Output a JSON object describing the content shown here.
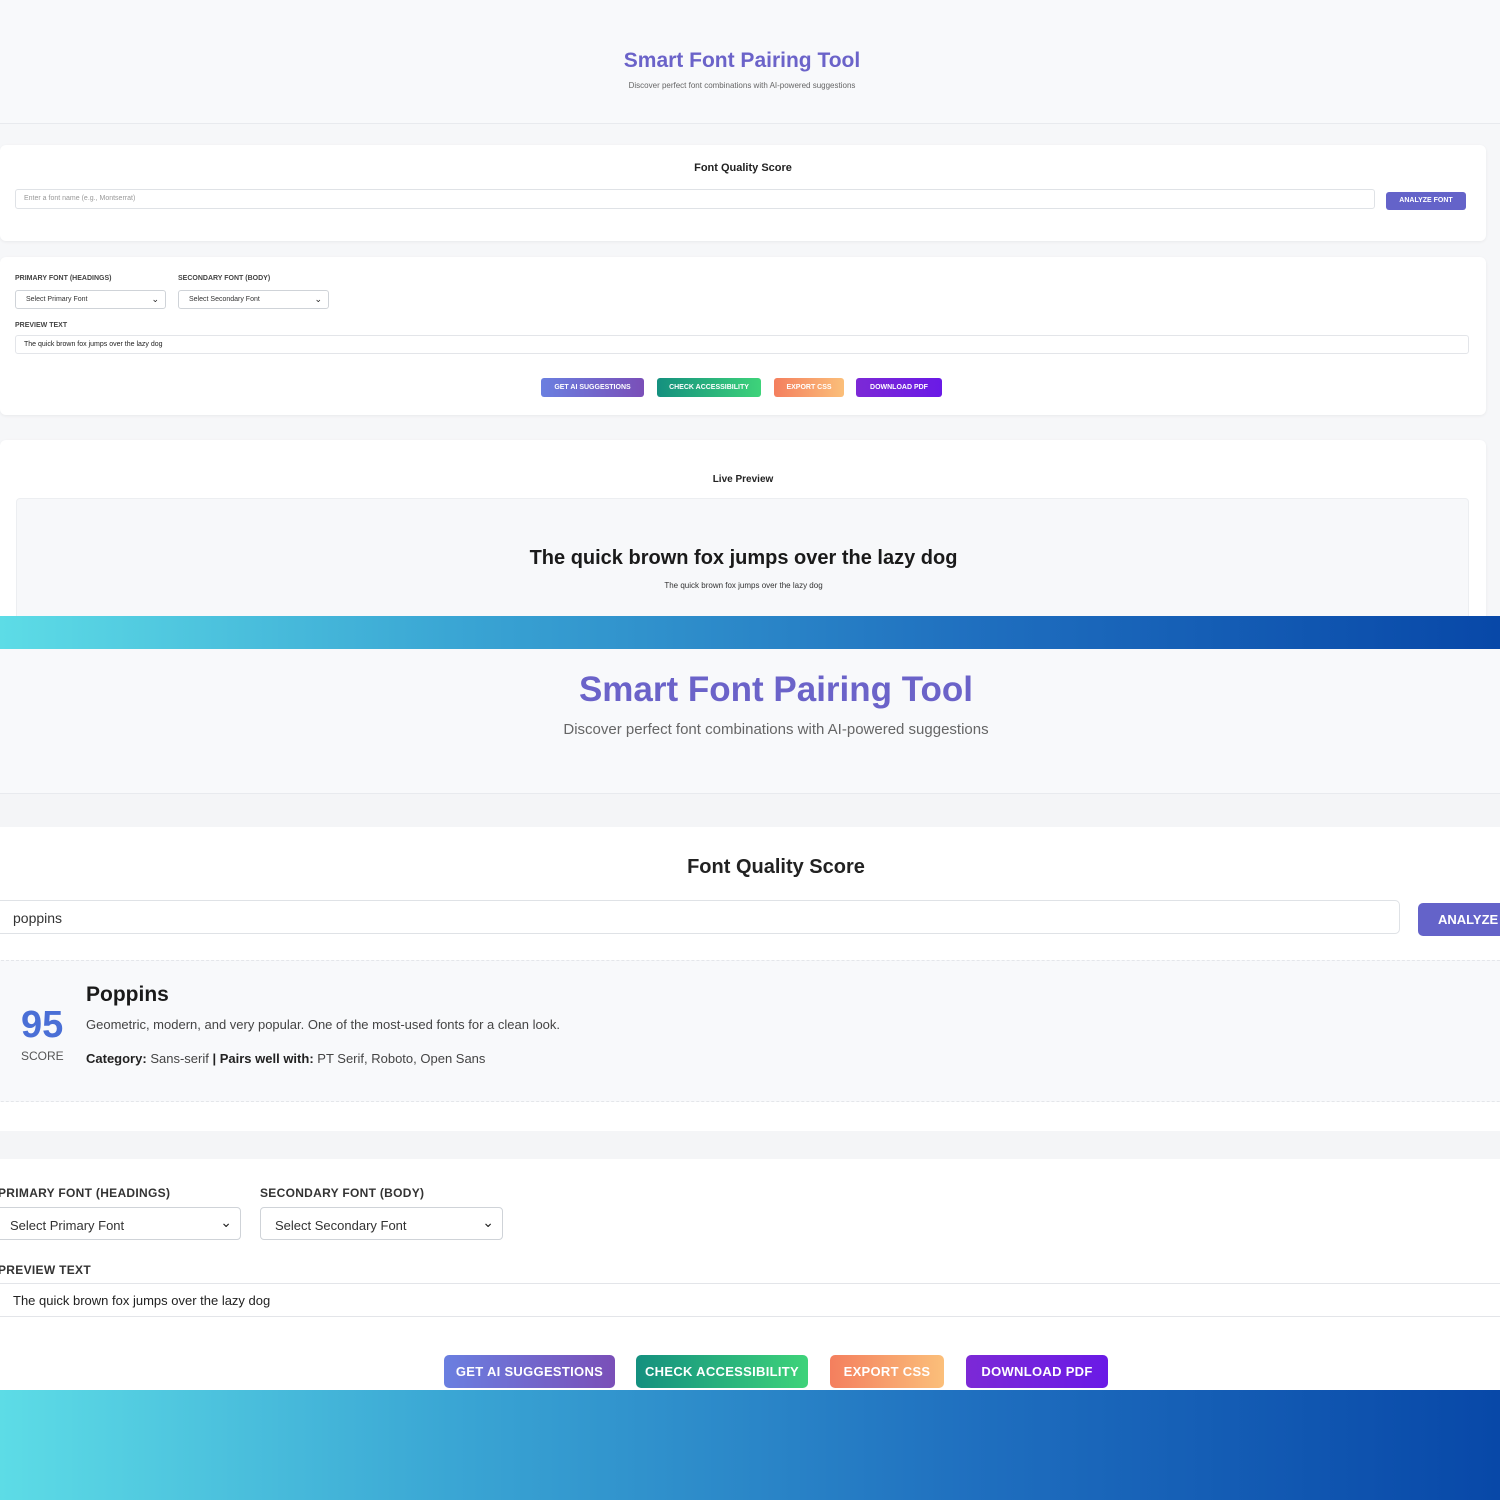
{
  "app": {
    "title": "Smart Font Pairing Tool",
    "subtitle": "Discover perfect font combinations with AI-powered suggestions"
  },
  "quality": {
    "heading": "Font Quality Score",
    "input_placeholder": "Enter a font name (e.g., Montserrat)",
    "input_value": "poppins",
    "analyze_label": "ANALYZE FONT",
    "result": {
      "score": "95",
      "score_label": "SCORE",
      "font_name": "Poppins",
      "description": "Geometric, modern, and very popular. One of the most-used fonts for a clean look.",
      "category_label": "Category:",
      "category": "Sans-serif",
      "separator": "|",
      "pairs_label": "Pairs well with:",
      "pairs": "PT Serif, Roboto, Open Sans"
    }
  },
  "controls": {
    "primary_label": "PRIMARY FONT (HEADINGS)",
    "primary_selected": "Select Primary Font",
    "secondary_label": "SECONDARY FONT (BODY)",
    "secondary_selected": "Select Secondary Font",
    "preview_label": "PREVIEW TEXT",
    "preview_value": "The quick brown fox jumps over the lazy dog",
    "buttons": {
      "ai": "GET AI SUGGESTIONS",
      "accessibility": "CHECK ACCESSIBILITY",
      "export": "EXPORT CSS",
      "pdf": "DOWNLOAD PDF"
    }
  },
  "live_preview": {
    "heading": "Live Preview",
    "heading_text": "The quick brown fox jumps over the lazy dog",
    "body_text": "The quick brown fox jumps over the lazy dog"
  },
  "colors": {
    "accent": "#6b63c9",
    "analyze": "#6463c9",
    "score": "#4a6fd6",
    "btn_ai": [
      "#6a7fe0",
      "#7a4fb8"
    ],
    "btn_accessibility": [
      "#14907f",
      "#3ed37a"
    ],
    "btn_export": [
      "#f47f5e",
      "#fbbf7a"
    ],
    "btn_pdf": [
      "#7c29d6",
      "#6a1ae6"
    ],
    "band": [
      "#5ddce6",
      "#0848a8"
    ]
  },
  "icons": {
    "select_chevron": "chevron-down-icon"
  }
}
